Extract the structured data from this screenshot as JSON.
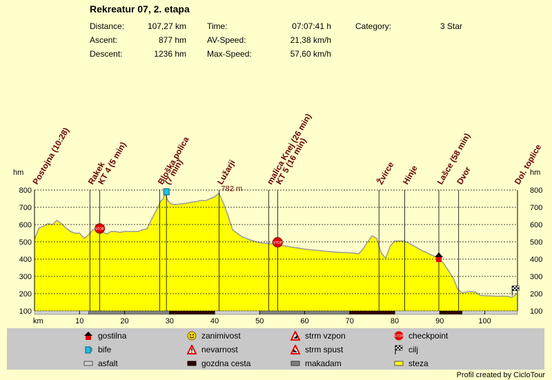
{
  "header": {
    "title": "Rekreatur 07, 2. etapa",
    "distance_label": "Distance:",
    "distance_value": "107,27 km",
    "ascent_label": "Ascent:",
    "ascent_value": "877 hm",
    "descent_label": "Descent:",
    "descent_value": "1236 hm",
    "time_label": "Time:",
    "time_value": "07:07:41 h",
    "avspeed_label": "AV-Speed:",
    "avspeed_value": "21,38 km/h",
    "maxspeed_label": "Max-Speed:",
    "maxspeed_value": "57,60 km/h",
    "category_label": "Category:",
    "category_value": "3 Star"
  },
  "colors": {
    "background": "#ffffcc",
    "profile_fill": "#ffff00",
    "profile_line": "#999999",
    "label": "#660000",
    "legend_bg": "#c8c8c8"
  },
  "chart_data": {
    "type": "area",
    "title": "",
    "xlabel": "km",
    "ylabel": "hm",
    "xlim": [
      0,
      107.27
    ],
    "ylim": [
      100,
      800
    ],
    "x_ticks": [
      10,
      20,
      30,
      40,
      50,
      60,
      70,
      80,
      90,
      100
    ],
    "y_ticks": [
      100,
      200,
      300,
      400,
      500,
      600,
      700,
      800
    ],
    "grid": true,
    "max_annotation": {
      "x": 41,
      "y": 782,
      "label": "782 m"
    },
    "x": [
      0,
      1,
      2,
      3,
      4,
      5,
      6,
      7,
      8,
      9,
      10,
      11,
      12,
      13,
      14,
      15,
      16,
      17,
      18,
      19,
      20,
      21,
      22,
      23,
      24,
      25,
      26,
      27,
      28,
      28.5,
      29,
      29.5,
      30,
      31,
      32,
      33,
      34,
      35,
      36,
      37,
      38,
      39,
      40,
      41,
      42,
      43,
      44,
      45,
      46,
      47,
      48,
      49,
      50,
      51,
      52,
      53,
      54,
      55,
      56,
      57,
      58,
      59,
      60,
      61,
      62,
      63,
      64,
      65,
      66,
      67,
      68,
      69,
      70,
      71,
      72,
      73,
      74,
      75,
      76,
      77,
      78,
      79,
      80,
      81,
      82,
      83,
      84,
      85,
      86,
      87,
      88,
      89,
      90,
      91,
      92,
      93,
      94,
      95,
      96,
      97,
      98,
      99,
      100,
      101,
      102,
      103,
      104,
      105,
      106,
      107.27
    ],
    "y": [
      515,
      580,
      590,
      605,
      600,
      625,
      605,
      580,
      560,
      550,
      550,
      520,
      540,
      570,
      570,
      560,
      545,
      560,
      560,
      555,
      560,
      560,
      560,
      560,
      570,
      575,
      630,
      680,
      735,
      745,
      782,
      745,
      725,
      715,
      718,
      720,
      725,
      730,
      733,
      740,
      738,
      750,
      760,
      782,
      720,
      650,
      570,
      550,
      530,
      520,
      510,
      502,
      495,
      492,
      490,
      487,
      485,
      478,
      475,
      470,
      466,
      462,
      458,
      455,
      452,
      450,
      447,
      445,
      442,
      440,
      438,
      438,
      436,
      435,
      430,
      460,
      500,
      535,
      520,
      435,
      405,
      475,
      505,
      505,
      505,
      495,
      480,
      465,
      450,
      440,
      425,
      415,
      400,
      370,
      330,
      290,
      225,
      205,
      210,
      212,
      208,
      190,
      188,
      187,
      186,
      185,
      186,
      185,
      178,
      202
    ],
    "waypoints": [
      {
        "label": "Postojna (10:28)",
        "x": 0
      },
      {
        "label": "Rakek",
        "x": 12.3
      },
      {
        "label": "KT 4 (5 min)",
        "x": 14.5,
        "icon": "checkpoint"
      },
      {
        "label": "Bloška polica",
        "x": 27.8
      },
      {
        "label": "(7 min)",
        "x": 29.3,
        "icon": "bife"
      },
      {
        "label": "Lužarji",
        "x": 41
      },
      {
        "label": "malica Knej (26 min)",
        "x": 52
      },
      {
        "label": "KT 5 (16 min)",
        "x": 54,
        "icon": "checkpoint"
      },
      {
        "label": "Žvirce",
        "x": 76.5
      },
      {
        "label": "Hinje",
        "x": 82.2
      },
      {
        "label": "Lašce (58 min)",
        "x": 89.8,
        "icon": "gostilna"
      },
      {
        "label": "Dvor",
        "x": 94.2
      },
      {
        "label": "Dol. toplice",
        "x": 107,
        "icon": "cilj"
      }
    ],
    "surface": [
      {
        "from": 0,
        "to": 12,
        "type": "asfalt"
      },
      {
        "from": 12,
        "to": 30,
        "type": "makadam"
      },
      {
        "from": 30,
        "to": 40,
        "type": "gozdna cesta"
      },
      {
        "from": 40,
        "to": 50,
        "type": "asfalt"
      },
      {
        "from": 50,
        "to": 70,
        "type": "makadam"
      },
      {
        "from": 70,
        "to": 80,
        "type": "gozdna cesta"
      },
      {
        "from": 80,
        "to": 90,
        "type": "asfalt"
      },
      {
        "from": 90,
        "to": 95,
        "type": "gozdna cesta"
      },
      {
        "from": 95,
        "to": 107.27,
        "type": "asfalt"
      }
    ]
  },
  "legend": [
    {
      "label": "gostilna",
      "icon": "gostilna-icon"
    },
    {
      "label": "zanimivost",
      "icon": "smiley-icon"
    },
    {
      "label": "strm vzpon",
      "icon": "steep-climb-icon"
    },
    {
      "label": "checkpoint",
      "icon": "stop-icon"
    },
    {
      "label": "bife",
      "icon": "cup-icon"
    },
    {
      "label": "nevarnost",
      "icon": "danger-icon"
    },
    {
      "label": "strm spust",
      "icon": "steep-descent-icon"
    },
    {
      "label": "cilj",
      "icon": "checkered-flag-icon"
    },
    {
      "label": "asfalt",
      "icon": "asfalt-swatch"
    },
    {
      "label": "gozdna cesta",
      "icon": "gozdna-cesta-swatch"
    },
    {
      "label": "makadam",
      "icon": "makadam-swatch"
    },
    {
      "label": "steza",
      "icon": "steza-swatch"
    }
  ],
  "footer": {
    "credit": "Profil created by CicloTour"
  }
}
